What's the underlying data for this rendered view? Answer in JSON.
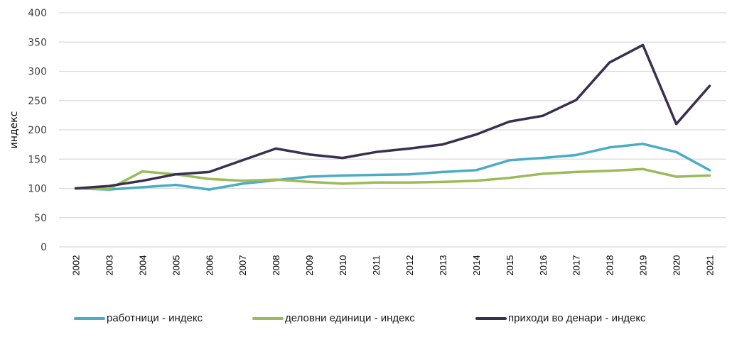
{
  "chart_data": {
    "type": "line",
    "title": "",
    "xlabel": "",
    "ylabel": "индекс",
    "ylim": [
      0,
      400
    ],
    "yticks": [
      "0",
      "50",
      "100",
      "150",
      "200",
      "250",
      "300",
      "350",
      "400"
    ],
    "ytick_values": [
      0,
      50,
      100,
      150,
      200,
      250,
      300,
      350,
      400
    ],
    "grid": true,
    "legend_position": "bottom",
    "categories": [
      "2002",
      "2003",
      "2004",
      "2005",
      "2006",
      "2007",
      "2008",
      "2009",
      "2010",
      "2011",
      "2012",
      "2013",
      "2014",
      "2015",
      "2016",
      "2017",
      "2018",
      "2019",
      "2020",
      "2021"
    ],
    "series": [
      {
        "name": "работници - индекс",
        "color": "#4bacc6",
        "values": [
          100,
          98,
          102,
          106,
          98,
          108,
          114,
          120,
          122,
          123,
          124,
          128,
          131,
          148,
          152,
          157,
          170,
          176,
          162,
          131
        ]
      },
      {
        "name": "деловни единици - индекс",
        "color": "#9bbb59",
        "values": [
          100,
          99,
          129,
          124,
          116,
          113,
          115,
          111,
          108,
          110,
          110,
          111,
          113,
          118,
          125,
          128,
          130,
          133,
          120,
          122
        ]
      },
      {
        "name": "приходи во денари - индекс",
        "color": "#3b2f4f",
        "values": [
          100,
          104,
          113,
          124,
          128,
          148,
          168,
          158,
          152,
          162,
          168,
          175,
          192,
          214,
          224,
          251,
          315,
          345,
          210,
          275
        ]
      }
    ]
  }
}
